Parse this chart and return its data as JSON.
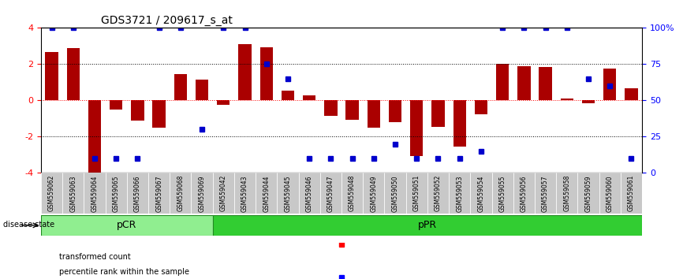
{
  "title": "GDS3721 / 209617_s_at",
  "samples": [
    "GSM559062",
    "GSM559063",
    "GSM559064",
    "GSM559065",
    "GSM559066",
    "GSM559067",
    "GSM559068",
    "GSM559069",
    "GSM559042",
    "GSM559043",
    "GSM559044",
    "GSM559045",
    "GSM559046",
    "GSM559047",
    "GSM559048",
    "GSM559049",
    "GSM559050",
    "GSM559051",
    "GSM559052",
    "GSM559053",
    "GSM559054",
    "GSM559055",
    "GSM559056",
    "GSM559057",
    "GSM559058",
    "GSM559059",
    "GSM559060",
    "GSM559061"
  ],
  "bar_values": [
    2.65,
    2.9,
    -4.1,
    -0.5,
    -1.1,
    -1.5,
    1.45,
    1.15,
    -0.25,
    3.1,
    2.95,
    0.55,
    0.3,
    -0.85,
    -1.05,
    -1.5,
    -1.2,
    -3.05,
    -1.45,
    -2.55,
    -0.75,
    2.0,
    1.9,
    1.85,
    0.1,
    -0.15,
    1.75,
    0.65
  ],
  "dot_values": [
    100,
    100,
    10,
    10,
    10,
    100,
    100,
    30,
    100,
    100,
    75,
    65,
    10,
    10,
    10,
    10,
    20,
    10,
    10,
    10,
    15,
    100,
    100,
    100,
    100,
    65,
    60,
    10
  ],
  "pCR_range": [
    0,
    8
  ],
  "pPR_range": [
    8,
    28
  ],
  "ylim": [
    -4,
    4
  ],
  "bar_color": "#AA0000",
  "dot_color": "#0000CC",
  "pCR_color": "#90EE90",
  "pPR_color": "#32CD32",
  "background_color": "#FFFFFF",
  "tick_bg": "#C0C0C0"
}
